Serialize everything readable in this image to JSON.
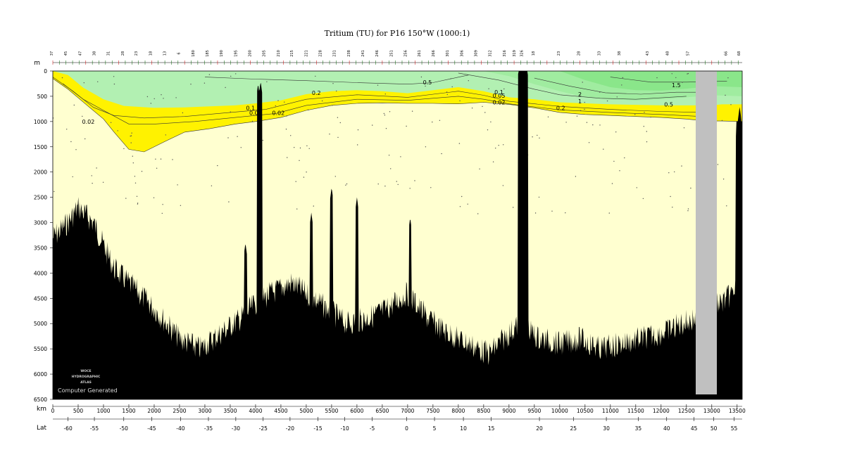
{
  "chart_data": {
    "type": "contour-section",
    "title": "Tritium (TU) for P16 150°W (1000:1)",
    "y_unit": "m",
    "x_unit": "km",
    "lat_label": "Lat",
    "xlim": [
      0,
      13600
    ],
    "ylim": [
      0,
      6500
    ],
    "y_inverted": true,
    "depth_ticks": [
      0,
      500,
      1000,
      1500,
      2000,
      2500,
      3000,
      3500,
      4000,
      4500,
      5000,
      5500,
      6000,
      6500
    ],
    "km_ticks": [
      0,
      500,
      1000,
      1500,
      2000,
      2500,
      3000,
      3500,
      4000,
      4500,
      5000,
      5500,
      6000,
      6500,
      7000,
      7500,
      8000,
      8500,
      9000,
      9500,
      10000,
      10500,
      11000,
      11500,
      12000,
      12500,
      13000,
      13500
    ],
    "lat_ticks": [
      {
        "lat": -60,
        "km": 300
      },
      {
        "lat": -55,
        "km": 820
      },
      {
        "lat": -50,
        "km": 1400
      },
      {
        "lat": -45,
        "km": 1950
      },
      {
        "lat": -40,
        "km": 2520
      },
      {
        "lat": -35,
        "km": 3070
      },
      {
        "lat": -30,
        "km": 3610
      },
      {
        "lat": -25,
        "km": 4150
      },
      {
        "lat": -20,
        "km": 4680
      },
      {
        "lat": -15,
        "km": 5230
      },
      {
        "lat": -10,
        "km": 5760
      },
      {
        "lat": -5,
        "km": 6300
      },
      {
        "lat": 0,
        "km": 6980
      },
      {
        "lat": 5,
        "km": 7530
      },
      {
        "lat": 10,
        "km": 8100
      },
      {
        "lat": 15,
        "km": 8650
      },
      {
        "lat": 20,
        "km": 9600
      },
      {
        "lat": 25,
        "km": 10270
      },
      {
        "lat": 30,
        "km": 10920
      },
      {
        "lat": 35,
        "km": 11550
      },
      {
        "lat": 40,
        "km": 12110
      },
      {
        "lat": 45,
        "km": 12650
      },
      {
        "lat": 50,
        "km": 13040
      },
      {
        "lat": 55,
        "km": 13440
      }
    ],
    "station_numbers": [
      {
        "label": "37",
        "km": 0
      },
      {
        "label": "45",
        "km": 280
      },
      {
        "label": "47",
        "km": 560
      },
      {
        "label": "38",
        "km": 840
      },
      {
        "label": "31",
        "km": 1120
      },
      {
        "label": "28",
        "km": 1400
      },
      {
        "label": "23",
        "km": 1670
      },
      {
        "label": "18",
        "km": 1950
      },
      {
        "label": "13",
        "km": 2230
      },
      {
        "label": "6",
        "km": 2510
      },
      {
        "label": "180",
        "km": 2790
      },
      {
        "label": "185",
        "km": 3070
      },
      {
        "label": "190",
        "km": 3350
      },
      {
        "label": "195",
        "km": 3630
      },
      {
        "label": "200",
        "km": 3910
      },
      {
        "label": "205",
        "km": 4190
      },
      {
        "label": "210",
        "km": 4470
      },
      {
        "label": "215",
        "km": 4740
      },
      {
        "label": "221",
        "km": 5020
      },
      {
        "label": "228",
        "km": 5300
      },
      {
        "label": "231",
        "km": 5580
      },
      {
        "label": "238",
        "km": 5860
      },
      {
        "label": "241",
        "km": 6140
      },
      {
        "label": "246",
        "km": 6420
      },
      {
        "label": "251",
        "km": 6700
      },
      {
        "label": "256",
        "km": 6980
      },
      {
        "label": "261",
        "km": 7250
      },
      {
        "label": "266",
        "km": 7530
      },
      {
        "label": "301",
        "km": 7810
      },
      {
        "label": "306",
        "km": 8090
      },
      {
        "label": "309",
        "km": 8370
      },
      {
        "label": "312",
        "km": 8650
      },
      {
        "label": "316",
        "km": 8930
      },
      {
        "label": "319",
        "km": 9130
      },
      {
        "label": "326",
        "km": 9270
      },
      {
        "label": "18",
        "km": 9500
      },
      {
        "label": "23",
        "km": 10000
      },
      {
        "label": "28",
        "km": 10400
      },
      {
        "label": "33",
        "km": 10800
      },
      {
        "label": "38",
        "km": 11200
      },
      {
        "label": "43",
        "km": 11750
      },
      {
        "label": "48",
        "km": 12150
      },
      {
        "label": "57",
        "km": 12550
      },
      {
        "label": "66",
        "km": 13300
      },
      {
        "label": "68",
        "km": 13560
      }
    ],
    "contour_fill_colors": {
      "tu_above_0.2": "#b2f0b2",
      "tu_above_1": "#a0eca0",
      "tu_above_1.5": "#8ae68a",
      "tu_0.02_to_0.2": "#fff200",
      "tu_below_0.02": "#ffffd0",
      "bathymetry": "#000000",
      "no_data_gap": "#c0c0c0"
    },
    "contour_labels": [
      {
        "text": "0.5",
        "km": 7390,
        "depth": 220
      },
      {
        "text": "1.5",
        "km": 12300,
        "depth": 280
      },
      {
        "text": "2",
        "km": 10400,
        "depth": 460
      },
      {
        "text": "1",
        "km": 10400,
        "depth": 600
      },
      {
        "text": "0.5",
        "km": 12150,
        "depth": 660
      },
      {
        "text": "0.2",
        "km": 5200,
        "depth": 430
      },
      {
        "text": "0.1",
        "km": 8800,
        "depth": 420
      },
      {
        "text": "0.05",
        "km": 8800,
        "depth": 490
      },
      {
        "text": "0.02",
        "km": 8800,
        "depth": 620
      },
      {
        "text": "0.2",
        "km": 10020,
        "depth": 730
      },
      {
        "text": "0.1",
        "km": 3900,
        "depth": 730
      },
      {
        "text": "0.05",
        "km": 4000,
        "depth": 830
      },
      {
        "text": "0.02",
        "km": 4450,
        "depth": 830
      },
      {
        "text": "0.02",
        "km": 700,
        "depth": 1000
      }
    ],
    "logo_lines": [
      "WOCE",
      "HYDROGRAPHIC",
      "ATLAS"
    ],
    "watermark": "Computer Generated"
  }
}
